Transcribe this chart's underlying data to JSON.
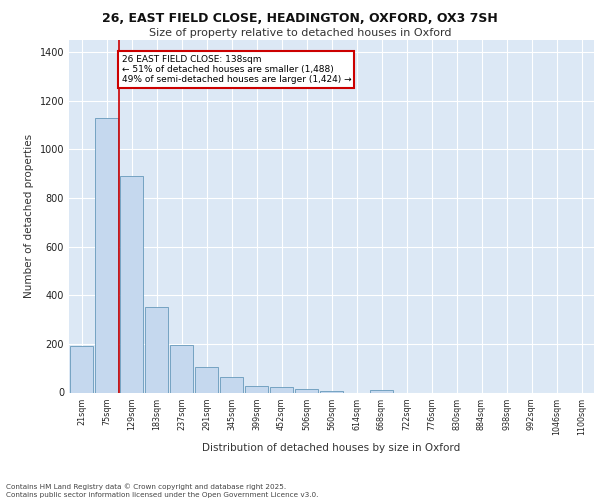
{
  "title_line1": "26, EAST FIELD CLOSE, HEADINGTON, OXFORD, OX3 7SH",
  "title_line2": "Size of property relative to detached houses in Oxford",
  "xlabel": "Distribution of detached houses by size in Oxford",
  "ylabel": "Number of detached properties",
  "categories": [
    "21sqm",
    "75sqm",
    "129sqm",
    "183sqm",
    "237sqm",
    "291sqm",
    "345sqm",
    "399sqm",
    "452sqm",
    "506sqm",
    "560sqm",
    "614sqm",
    "668sqm",
    "722sqm",
    "776sqm",
    "830sqm",
    "884sqm",
    "938sqm",
    "992sqm",
    "1046sqm",
    "1100sqm"
  ],
  "values": [
    193,
    1130,
    890,
    350,
    195,
    105,
    63,
    27,
    22,
    14,
    8,
    0,
    11,
    0,
    0,
    0,
    0,
    0,
    0,
    0,
    0
  ],
  "bar_color": "#c5d8ee",
  "bar_edge_color": "#6699bb",
  "vline_color": "#cc0000",
  "vline_x": 1.5,
  "annotation_text": "26 EAST FIELD CLOSE: 138sqm\n← 51% of detached houses are smaller (1,488)\n49% of semi-detached houses are larger (1,424) →",
  "annotation_box_edge_color": "#cc0000",
  "ylim": [
    0,
    1450
  ],
  "yticks": [
    0,
    200,
    400,
    600,
    800,
    1000,
    1200,
    1400
  ],
  "bg_color": "#dce8f5",
  "footer_line1": "Contains HM Land Registry data © Crown copyright and database right 2025.",
  "footer_line2": "Contains public sector information licensed under the Open Government Licence v3.0."
}
